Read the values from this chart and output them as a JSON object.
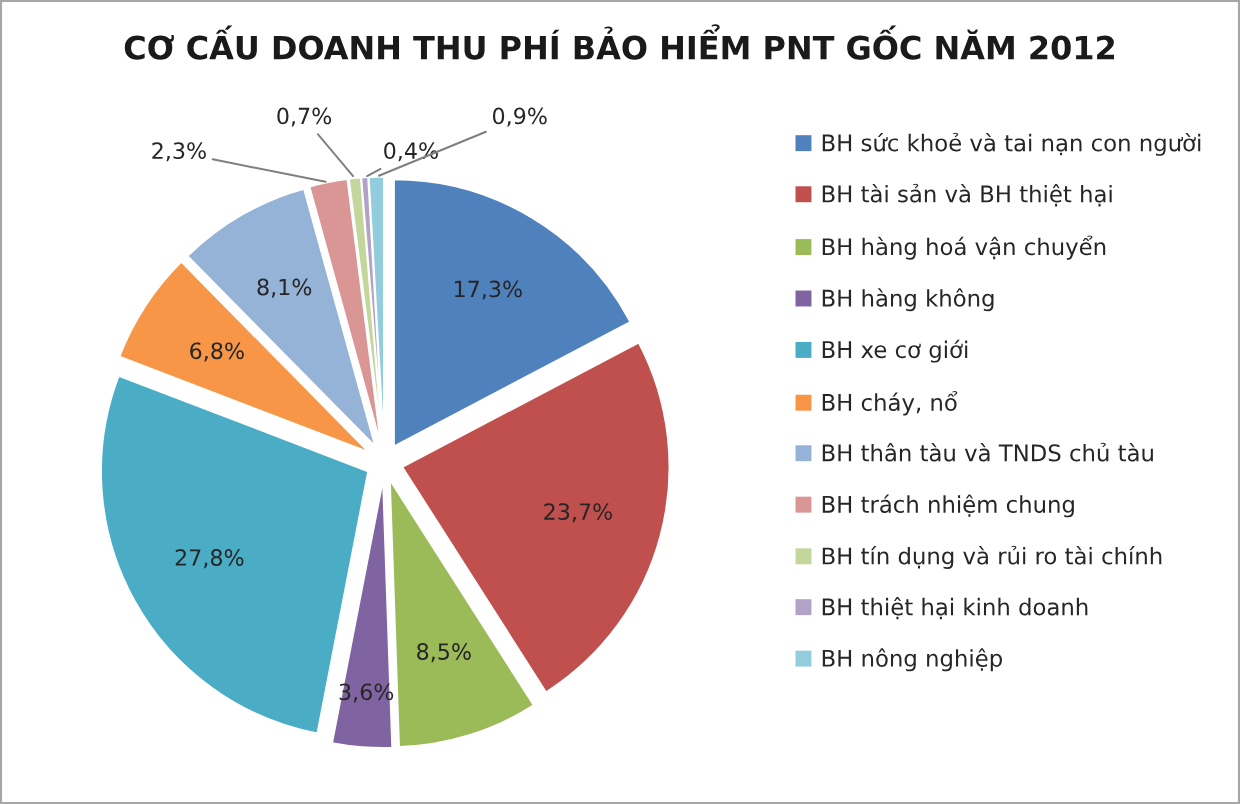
{
  "chart_data": {
    "type": "pie",
    "title": "CƠ CẤU DOANH THU PHÍ BẢO HIỂM PNT GỐC NĂM 2012",
    "categories": [
      "BH sức khoẻ và tai nạn con người",
      "BH tài sản và BH thiệt hại",
      "BH hàng hoá vận chuyển",
      "BH hàng không",
      "BH xe cơ giới",
      "BH cháy, nổ",
      "BH thân tàu và TNDS chủ tàu",
      "BH trách nhiệm chung",
      "BH tín dụng và rủi ro tài chính",
      "BH thiệt hại kinh doanh",
      "BH nông nghiệp"
    ],
    "values": [
      17.3,
      23.7,
      8.5,
      3.6,
      27.8,
      6.8,
      8.1,
      2.3,
      0.7,
      0.4,
      0.9
    ],
    "colors": [
      "#4f81bd",
      "#c0504d",
      "#9bbb59",
      "#8064a2",
      "#4bacc6",
      "#f79646",
      "#95b3d7",
      "#d99694",
      "#c3d69b",
      "#b3a2c7",
      "#93cddd"
    ],
    "value_labels": [
      "17,3%",
      "23,7%",
      "8,5%",
      "3,6%",
      "27,8%",
      "6,8%",
      "8,1%",
      "2,3%",
      "0,7%",
      "0,4%",
      "0,9%"
    ],
    "legend": "right"
  }
}
